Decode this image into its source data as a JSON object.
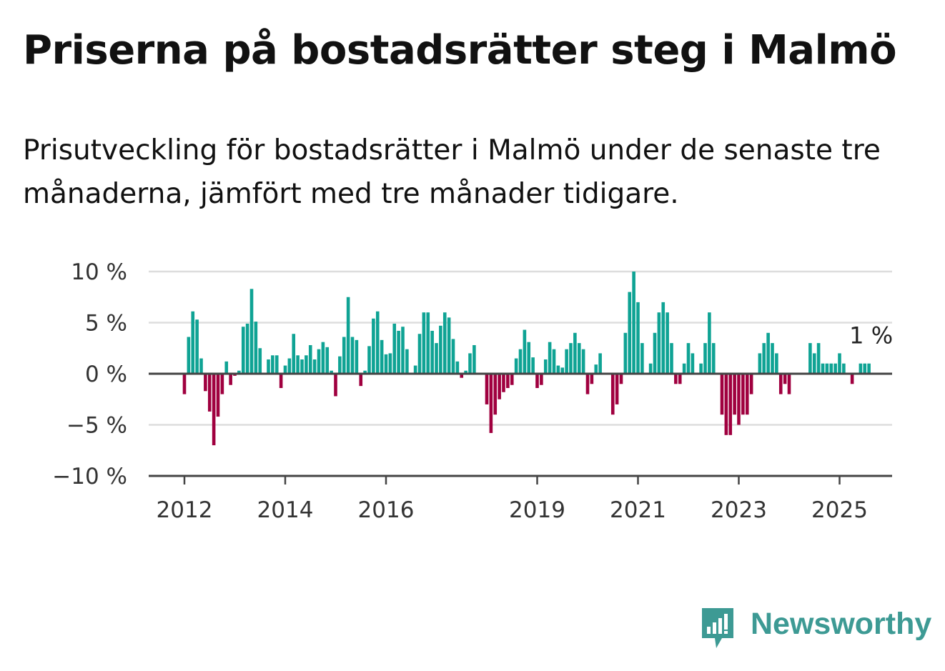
{
  "title": "Priserna på bostadsrätter steg i Malmö",
  "subtitle": "Prisutveckling för bostadsrätter i Malmö under de senaste tre månaderna, jämfört med tre månader tidigare.",
  "logo": {
    "text": "Newsworthy",
    "icon": "newsworthy-bar-chart-icon"
  },
  "colors": {
    "positive": "#0fa394",
    "negative": "#a0003f",
    "grid": "#dddddd",
    "axis": "#444444",
    "logo": "#3d9a94"
  },
  "chart_data": {
    "type": "bar",
    "title": "",
    "xlabel": "",
    "ylabel": "",
    "ylim": [
      -10,
      10
    ],
    "yticks": [
      10,
      5,
      0,
      -5,
      -10
    ],
    "ytick_labels": [
      "10 %",
      "5 %",
      "0 %",
      "−5 %",
      "−10 %"
    ],
    "xticks": [
      {
        "year": 2012,
        "label": "2012"
      },
      {
        "year": 2014,
        "label": "2014"
      },
      {
        "year": 2016,
        "label": "2016"
      },
      {
        "year": 2019,
        "label": "2019"
      },
      {
        "year": 2021,
        "label": "2021"
      },
      {
        "year": 2023,
        "label": "2023"
      },
      {
        "year": 2025,
        "label": "2025"
      }
    ],
    "grid": true,
    "start": "2012-01",
    "frequency": "monthly",
    "series": [
      {
        "values": [
          -2,
          3.6,
          6.1,
          5.3,
          1.5,
          -1.7,
          -3.7,
          -7,
          -4.2,
          -2,
          1.2,
          -1.1,
          -0.2,
          0.3,
          4.6,
          4.9,
          8.3,
          5.1,
          2.5,
          0,
          1.4,
          1.8,
          1.8,
          -1.4,
          0.8,
          1.5,
          3.9,
          1.8,
          1.4,
          1.8,
          2.8,
          1.4,
          2.4,
          3.1,
          2.6,
          0.3,
          -2.2,
          1.7,
          3.6,
          7.5,
          3.6,
          3.3,
          -1.2,
          0.3,
          2.7,
          5.4,
          6.1,
          3.3,
          1.9,
          2,
          4.9,
          4.2,
          4.6,
          2.4,
          0,
          0.8,
          3.9,
          6,
          6,
          4.2,
          3,
          4.7,
          6,
          5.5,
          3.4,
          1.2,
          -0.4,
          0.3,
          2,
          2.8,
          0,
          0,
          -3,
          -5.8,
          -4,
          -2.5,
          -1.8,
          -1.4,
          -1.1,
          1.5,
          2.4,
          4.3,
          3.1,
          1.6,
          -1.4,
          -1.1,
          1.4,
          3.1,
          2.4,
          0.8,
          0.6,
          2.4,
          3,
          4,
          3,
          2.4,
          -2,
          -1,
          0.9,
          2,
          0,
          0,
          -4,
          -3,
          -1,
          4,
          8,
          10,
          7,
          3,
          0,
          1,
          4,
          6,
          7,
          6,
          3,
          -1,
          -1,
          1,
          3,
          2,
          0,
          1,
          3,
          6,
          3,
          0,
          -4,
          -6,
          -6,
          -4,
          -5,
          -4,
          -4,
          -2,
          0,
          2,
          3,
          4,
          3,
          2,
          -2,
          -1,
          -2,
          0,
          0,
          0,
          0,
          3,
          2,
          3,
          1,
          1,
          1,
          1,
          2,
          1,
          0,
          -1,
          0,
          1,
          1,
          1
        ]
      }
    ],
    "annotations": [
      {
        "label": "1 %",
        "target": "last-bar"
      }
    ]
  }
}
